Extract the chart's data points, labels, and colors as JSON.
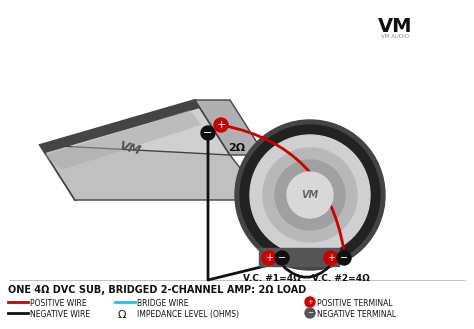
{
  "title": "ONE 4Ω DVC SUB, BRIDGED 2-CHANNEL AMP: 2Ω LOAD",
  "bg_color": "#ffffff",
  "legend_items": [
    {
      "label": "POSITIVE WIRE",
      "color": "#cc0000",
      "type": "line"
    },
    {
      "label": "NEGATIVE WIRE",
      "color": "#111111",
      "type": "line"
    },
    {
      "label": "BRIDGE WIRE",
      "color": "#00ccff",
      "type": "line"
    },
    {
      "label": "IMPEDANCE LEVEL (OHMS)",
      "color": "#000000",
      "type": "omega"
    },
    {
      "label": "POSITIVE TERMINAL",
      "color": "#cc0000",
      "type": "circle_plus"
    },
    {
      "label": "NEGATIVE TERMINAL",
      "color": "#555555",
      "type": "circle_minus"
    }
  ],
  "amp_label": "2Ω",
  "vc1_label": "V.C. #1=4Ω",
  "vc2_label": "V.C. #2=4Ω",
  "vm_logo_color": "#111111",
  "title_fontsize": 7,
  "legend_fontsize": 5.5
}
